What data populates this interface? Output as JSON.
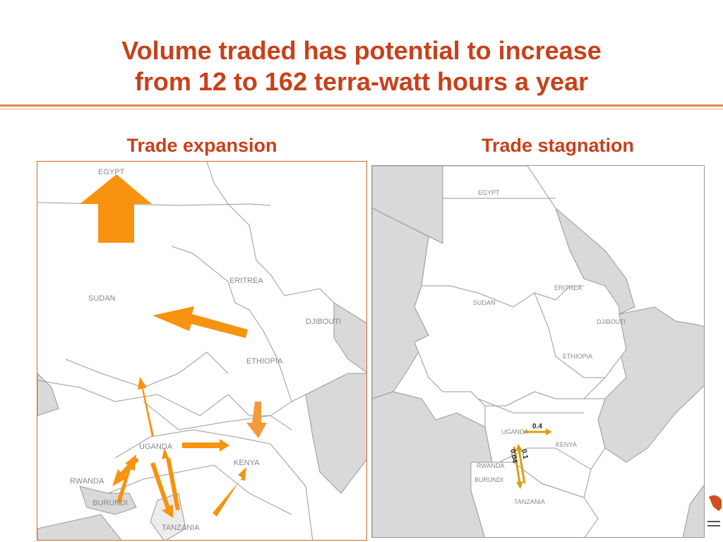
{
  "slide": {
    "title_line1": "Volume traded has potential to increase",
    "title_line2": "from 12 to 162 terra-watt hours a year"
  },
  "left_panel": {
    "heading": "Trade expansion",
    "labels": {
      "egypt": "EGYPT",
      "sudan": "SUDAN",
      "eritrea": "ERITREA",
      "djibouti": "DJIBOUTI",
      "ethiopia": "ETHIOPIA",
      "uganda": "UGANDA",
      "kenya": "KENYA",
      "rwanda": "RWANDA",
      "burundi": "BURUNDI",
      "tanzania": "TANZANIA"
    }
  },
  "right_panel": {
    "heading": "Trade stagnation",
    "labels": {
      "egypt": "EGYPT",
      "sudan": "SUDAN",
      "eritrea": "ERITREA",
      "djibouti": "DJIBOUTI",
      "ethiopia": "ETHIOPIA",
      "uganda": "UGANDA",
      "kenya": "KENYA",
      "rwanda": "RWANDA",
      "burundi": "BURUNDI",
      "tanzania": "TANZANIA"
    },
    "flow_values": {
      "uganda_kenya": "0.4",
      "tanzania_uganda_a": "0.04",
      "tanzania_uganda_b": "0.1"
    }
  },
  "colors": {
    "title": "#c8401a",
    "arrow": "#f7930f",
    "arrow_light": "#f59a3c",
    "flow_arrow": "#d9a012",
    "land_grey": "#d9d9d9",
    "border": "#999999",
    "frame_left": "#d2691e"
  }
}
